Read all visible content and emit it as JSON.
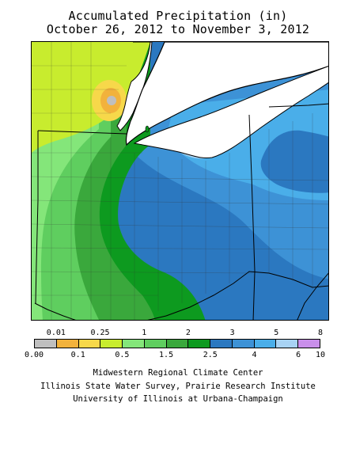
{
  "header": {
    "title": "Accumulated Precipitation (in)",
    "date_range": "October 26, 2012 to November 3, 2012"
  },
  "legend": {
    "units": "in",
    "top_labels": [
      "0.01",
      "0.25",
      "1",
      "2",
      "3",
      "5",
      "8"
    ],
    "bottom_labels": [
      "0.00",
      "0.1",
      "0.5",
      "1.5",
      "2.5",
      "4",
      "6",
      "10"
    ],
    "colors": [
      "#bfbfbf",
      "#f2b23c",
      "#f7d84a",
      "#c8ec2e",
      "#84e67a",
      "#5fce5f",
      "#3aa83c",
      "#0d9a1f",
      "#2b78c0",
      "#3d92d6",
      "#4aaee9",
      "#a8d3f4",
      "#c98fea"
    ]
  },
  "credits": {
    "line1": "Midwestern Regional Climate Center",
    "line2": "Illinois State Water Survey, Prairie Research Institute",
    "line3": "University of Illinois at Urbana-Champaign"
  },
  "map": {
    "region_colors": {
      "water": "#ffffff",
      "band_lt_0_5": "#c8ec2e",
      "band_0_5_1": "#84e67a",
      "band_1_1_5": "#5fce5f",
      "band_1_5_2": "#3aa83c",
      "band_2_2_5": "#0d9a1f",
      "band_3_4": "#2b78c0",
      "band_4_5": "#3d92d6",
      "band_5_6": "#4aaee9",
      "band_6_8": "#a8d3f4",
      "band_0_1_0_25": "#f7d84a",
      "band_0_01_0_1": "#f2b23c",
      "band_none": "#bfbfbf"
    }
  }
}
